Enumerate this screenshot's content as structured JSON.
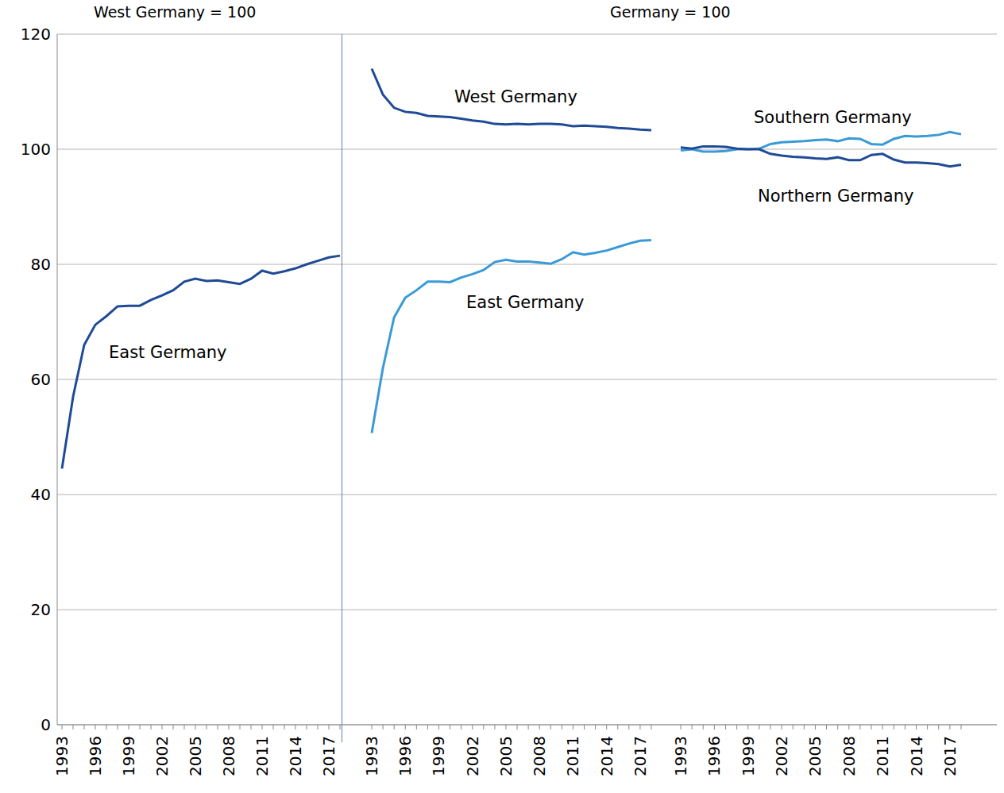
{
  "chart_data": [
    {
      "type": "line",
      "title": "West Germany = 100",
      "categories": [
        "1993",
        null,
        null,
        "1996",
        null,
        null,
        "1999",
        null,
        null,
        "2002",
        null,
        null,
        "2005",
        null,
        null,
        "2008",
        null,
        null,
        "2011",
        null,
        null,
        "2014",
        null,
        null,
        "2017",
        null
      ],
      "series": [
        {
          "name": "East Germany",
          "color": "#1f4b96",
          "values": [
            44.5,
            57,
            66,
            69.5,
            71,
            72.7,
            72.8,
            72.8,
            73.8,
            74.6,
            75.5,
            77,
            77.5,
            77.1,
            77.2,
            76.9,
            76.6,
            77.5,
            78.9,
            78.4,
            78.8,
            79.3,
            80,
            80.6,
            81.2,
            81.5
          ]
        }
      ],
      "ylim": [
        0,
        120
      ],
      "yticks": [
        0,
        20,
        40,
        60,
        80,
        100,
        120
      ],
      "grid": true
    },
    {
      "type": "line",
      "title": "Germany = 100",
      "categories": [
        "1993",
        null,
        null,
        "1996",
        null,
        null,
        "1999",
        null,
        null,
        "2002",
        null,
        null,
        "2005",
        null,
        null,
        "2008",
        null,
        null,
        "2011",
        null,
        null,
        "2014",
        null,
        null,
        "2017",
        null
      ],
      "series": [
        {
          "name": "West Germany",
          "color": "#1f4b96",
          "values": [
            114,
            109.5,
            107.2,
            106.5,
            106.3,
            105.8,
            105.7,
            105.6,
            105.3,
            105,
            104.8,
            104.4,
            104.3,
            104.4,
            104.3,
            104.4,
            104.4,
            104.3,
            104,
            104.1,
            104,
            103.9,
            103.7,
            103.6,
            103.4,
            103.3
          ]
        },
        {
          "name": "East Germany",
          "color": "#3a9ad6",
          "values": [
            50.7,
            62,
            70.8,
            74.2,
            75.5,
            77,
            77,
            76.9,
            77.7,
            78.3,
            79,
            80.4,
            80.8,
            80.5,
            80.5,
            80.3,
            80.1,
            80.9,
            82.1,
            81.7,
            82,
            82.4,
            83,
            83.6,
            84.1,
            84.2
          ]
        }
      ],
      "ylim": [
        0,
        120
      ],
      "yticks": [
        0,
        20,
        40,
        60,
        80,
        100,
        120
      ],
      "grid": true,
      "tick_labels": "x"
    },
    {
      "type": "line",
      "categories": [
        "1993",
        null,
        null,
        "1996",
        null,
        null,
        "1999",
        null,
        null,
        "2002",
        null,
        null,
        "2005",
        null,
        null,
        "2008",
        null,
        null,
        "2011",
        null,
        null,
        "2014",
        null,
        null,
        "2017",
        null
      ],
      "series": [
        {
          "name": "Southern Germany",
          "color": "#3a9ad6",
          "values": [
            99.8,
            100,
            99.6,
            99.6,
            99.7,
            100,
            100,
            100.1,
            100.9,
            101.2,
            101.3,
            101.4,
            101.6,
            101.7,
            101.4,
            101.9,
            101.8,
            100.9,
            100.8,
            101.8,
            102.3,
            102.2,
            102.3,
            102.5,
            103,
            102.6
          ]
        },
        {
          "name": "Northern Germany",
          "color": "#1f4b96",
          "values": [
            100.3,
            100.1,
            100.5,
            100.5,
            100.4,
            100.1,
            100,
            100,
            99.2,
            98.9,
            98.7,
            98.6,
            98.4,
            98.3,
            98.6,
            98.1,
            98.1,
            99,
            99.2,
            98.2,
            97.7,
            97.7,
            97.6,
            97.4,
            97,
            97.3
          ]
        }
      ],
      "ylim": [
        0,
        120
      ],
      "yticks": [
        0,
        20,
        40,
        60,
        80,
        100,
        120
      ],
      "grid": true,
      "tick_labels": "x"
    }
  ]
}
